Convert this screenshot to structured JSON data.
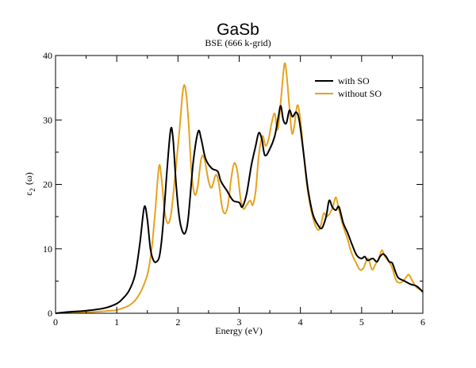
{
  "chart_data": {
    "type": "line",
    "title": "GaSb",
    "subtitle": "BSE (666 k-grid)",
    "xlabel": "Energy (eV)",
    "ylabel_main": "ε",
    "ylabel_sub": "2",
    "ylabel_tail": "(ω)",
    "xlim": [
      0,
      6
    ],
    "ylim": [
      0,
      40
    ],
    "xticks": [
      "0",
      "1",
      "2",
      "3",
      "4",
      "5",
      "6"
    ],
    "yticks": [
      "0",
      "10",
      "20",
      "30",
      "40"
    ],
    "legend_position": "top-right",
    "grid": false,
    "series": [
      {
        "name": "with SO",
        "color": "#000000",
        "points": [
          [
            0.0,
            0.0
          ],
          [
            0.2,
            0.2
          ],
          [
            0.5,
            0.4
          ],
          [
            0.8,
            0.8
          ],
          [
            1.0,
            1.5
          ],
          [
            1.1,
            2.3
          ],
          [
            1.2,
            3.5
          ],
          [
            1.3,
            6.0
          ],
          [
            1.38,
            11.0
          ],
          [
            1.45,
            16.5
          ],
          [
            1.5,
            14.5
          ],
          [
            1.55,
            10.0
          ],
          [
            1.6,
            8.2
          ],
          [
            1.65,
            8.0
          ],
          [
            1.7,
            9.0
          ],
          [
            1.75,
            13.0
          ],
          [
            1.82,
            22.0
          ],
          [
            1.88,
            28.5
          ],
          [
            1.92,
            27.0
          ],
          [
            1.97,
            20.0
          ],
          [
            2.02,
            15.0
          ],
          [
            2.07,
            12.8
          ],
          [
            2.12,
            12.5
          ],
          [
            2.17,
            15.0
          ],
          [
            2.25,
            23.5
          ],
          [
            2.33,
            28.2
          ],
          [
            2.38,
            27.0
          ],
          [
            2.45,
            24.0
          ],
          [
            2.55,
            22.5
          ],
          [
            2.65,
            22.0
          ],
          [
            2.7,
            20.5
          ],
          [
            2.8,
            19.0
          ],
          [
            2.9,
            17.5
          ],
          [
            3.0,
            17.2
          ],
          [
            3.05,
            16.5
          ],
          [
            3.12,
            18.5
          ],
          [
            3.2,
            23.0
          ],
          [
            3.27,
            26.0
          ],
          [
            3.32,
            28.0
          ],
          [
            3.37,
            27.0
          ],
          [
            3.42,
            24.5
          ],
          [
            3.5,
            25.5
          ],
          [
            3.58,
            27.5
          ],
          [
            3.64,
            30.5
          ],
          [
            3.68,
            32.2
          ],
          [
            3.72,
            30.0
          ],
          [
            3.77,
            29.5
          ],
          [
            3.82,
            31.5
          ],
          [
            3.87,
            30.5
          ],
          [
            3.93,
            31.2
          ],
          [
            3.98,
            30.0
          ],
          [
            4.05,
            25.0
          ],
          [
            4.12,
            19.5
          ],
          [
            4.2,
            15.5
          ],
          [
            4.28,
            13.8
          ],
          [
            4.35,
            13.2
          ],
          [
            4.42,
            15.0
          ],
          [
            4.47,
            17.5
          ],
          [
            4.52,
            16.5
          ],
          [
            4.58,
            16.0
          ],
          [
            4.63,
            16.5
          ],
          [
            4.7,
            14.0
          ],
          [
            4.77,
            12.5
          ],
          [
            4.85,
            10.5
          ],
          [
            4.92,
            9.0
          ],
          [
            5.0,
            8.5
          ],
          [
            5.05,
            8.8
          ],
          [
            5.1,
            8.2
          ],
          [
            5.18,
            8.5
          ],
          [
            5.25,
            8.0
          ],
          [
            5.3,
            8.8
          ],
          [
            5.35,
            9.2
          ],
          [
            5.4,
            8.8
          ],
          [
            5.45,
            8.0
          ],
          [
            5.5,
            7.8
          ],
          [
            5.55,
            6.5
          ],
          [
            5.6,
            5.5
          ],
          [
            5.7,
            5.0
          ],
          [
            5.8,
            4.5
          ],
          [
            5.9,
            4.2
          ],
          [
            6.0,
            3.3
          ]
        ]
      },
      {
        "name": "without SO",
        "color": "#e6a21e",
        "points": [
          [
            0.0,
            0.0
          ],
          [
            0.3,
            0.1
          ],
          [
            0.6,
            0.2
          ],
          [
            0.9,
            0.4
          ],
          [
            1.0,
            0.5
          ],
          [
            1.1,
            0.8
          ],
          [
            1.2,
            1.2
          ],
          [
            1.3,
            2.0
          ],
          [
            1.4,
            3.5
          ],
          [
            1.5,
            6.0
          ],
          [
            1.57,
            10.0
          ],
          [
            1.63,
            16.0
          ],
          [
            1.69,
            22.8
          ],
          [
            1.73,
            21.0
          ],
          [
            1.78,
            16.0
          ],
          [
            1.83,
            14.0
          ],
          [
            1.88,
            15.0
          ],
          [
            1.93,
            19.0
          ],
          [
            1.98,
            24.0
          ],
          [
            2.03,
            29.0
          ],
          [
            2.08,
            34.5
          ],
          [
            2.12,
            35.0
          ],
          [
            2.17,
            30.0
          ],
          [
            2.22,
            22.0
          ],
          [
            2.27,
            18.5
          ],
          [
            2.32,
            19.5
          ],
          [
            2.38,
            24.0
          ],
          [
            2.43,
            24.0
          ],
          [
            2.5,
            20.5
          ],
          [
            2.55,
            19.5
          ],
          [
            2.62,
            21.5
          ],
          [
            2.67,
            20.0
          ],
          [
            2.72,
            16.5
          ],
          [
            2.77,
            15.5
          ],
          [
            2.82,
            17.0
          ],
          [
            2.87,
            21.0
          ],
          [
            2.92,
            23.3
          ],
          [
            2.97,
            22.0
          ],
          [
            3.02,
            18.0
          ],
          [
            3.07,
            16.2
          ],
          [
            3.12,
            16.8
          ],
          [
            3.18,
            17.5
          ],
          [
            3.22,
            16.8
          ],
          [
            3.27,
            19.0
          ],
          [
            3.32,
            24.5
          ],
          [
            3.38,
            27.5
          ],
          [
            3.43,
            26.0
          ],
          [
            3.48,
            27.0
          ],
          [
            3.53,
            29.5
          ],
          [
            3.58,
            31.0
          ],
          [
            3.63,
            28.5
          ],
          [
            3.68,
            33.0
          ],
          [
            3.74,
            38.7
          ],
          [
            3.78,
            36.5
          ],
          [
            3.82,
            32.0
          ],
          [
            3.86,
            28.0
          ],
          [
            3.9,
            29.0
          ],
          [
            3.95,
            32.3
          ],
          [
            4.0,
            30.0
          ],
          [
            4.05,
            25.0
          ],
          [
            4.12,
            19.0
          ],
          [
            4.2,
            15.0
          ],
          [
            4.28,
            13.0
          ],
          [
            4.33,
            13.5
          ],
          [
            4.38,
            15.5
          ],
          [
            4.43,
            15.0
          ],
          [
            4.48,
            15.5
          ],
          [
            4.53,
            16.5
          ],
          [
            4.58,
            18.0
          ],
          [
            4.63,
            16.0
          ],
          [
            4.7,
            13.5
          ],
          [
            4.77,
            11.5
          ],
          [
            4.83,
            9.5
          ],
          [
            4.9,
            8.0
          ],
          [
            4.97,
            6.8
          ],
          [
            5.03,
            7.0
          ],
          [
            5.1,
            8.5
          ],
          [
            5.17,
            6.8
          ],
          [
            5.22,
            7.5
          ],
          [
            5.28,
            8.5
          ],
          [
            5.33,
            9.8
          ],
          [
            5.38,
            8.8
          ],
          [
            5.45,
            8.0
          ],
          [
            5.5,
            7.0
          ],
          [
            5.57,
            5.0
          ],
          [
            5.65,
            4.8
          ],
          [
            5.72,
            5.5
          ],
          [
            5.77,
            6.0
          ],
          [
            5.83,
            5.0
          ],
          [
            5.9,
            4.0
          ],
          [
            6.0,
            3.5
          ]
        ]
      }
    ]
  }
}
